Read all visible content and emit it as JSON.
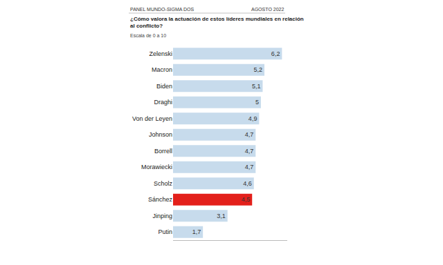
{
  "chart_data": {
    "type": "bar",
    "orientation": "horizontal",
    "title": "¿Cómo valora la actuación de estos líderes mundiales en relación al conflicto?",
    "subtitle": "Escala de 0 a 10",
    "annotations": [
      "PANEL MUNDO-SIGMA DOS",
      "AGOSTO 2022"
    ],
    "categories": [
      "Zelenski",
      "Macron",
      "Biden",
      "Draghi",
      "Von der Leyen",
      "Johnson",
      "Borrell",
      "Morawiecki",
      "Scholz",
      "Sánchez",
      "Jinping",
      "Putin"
    ],
    "values": [
      6.2,
      5.2,
      5.1,
      5,
      4.9,
      4.7,
      4.7,
      4.7,
      4.6,
      4.5,
      3.1,
      1.7
    ],
    "value_labels": [
      "6,2",
      "5,2",
      "5,1",
      "5",
      "4,9",
      "4,7",
      "4,7",
      "4,7",
      "4,6",
      "4,5",
      "3,1",
      "1,7"
    ],
    "colors": [
      "#c7dbec",
      "#c7dbec",
      "#c7dbec",
      "#c7dbec",
      "#c7dbec",
      "#c7dbec",
      "#c7dbec",
      "#c7dbec",
      "#c7dbec",
      "#e3201b",
      "#c7dbec",
      "#c7dbec"
    ],
    "data_labels": true,
    "tick_labels": "y",
    "grid": false,
    "xlim": [
      0,
      6.5
    ]
  }
}
